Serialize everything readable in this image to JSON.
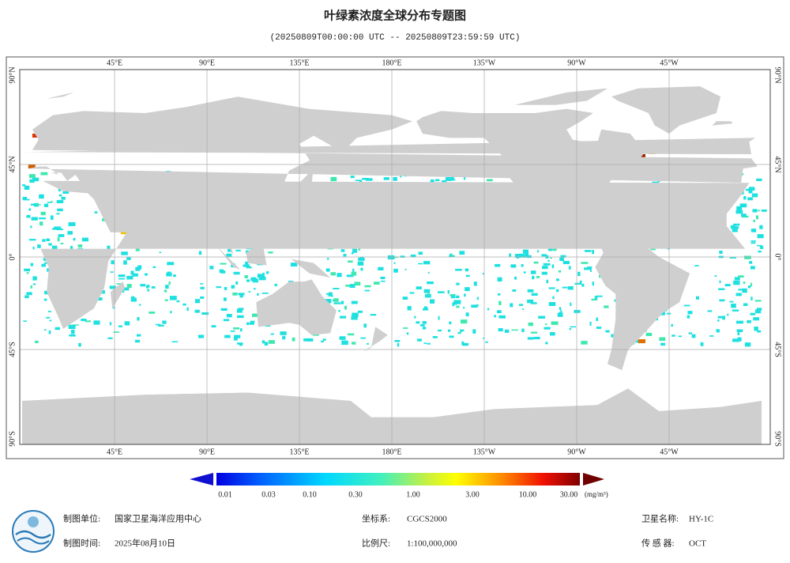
{
  "header": {
    "title": "叶绿素浓度全球分布专题图",
    "subtitle": "(20250809T00:00:00 UTC -- 20250809T23:59:59 UTC)"
  },
  "map": {
    "lon_labels": [
      "45°E",
      "90°E",
      "135°E",
      "180°E",
      "135°W",
      "90°W",
      "45°W"
    ],
    "lat_labels": [
      "90°N",
      "45°N",
      "0°",
      "45°S",
      "90°S"
    ]
  },
  "legend": {
    "tick_labels": [
      "0.01",
      "0.03",
      "0.10",
      "0.30",
      "1.00",
      "3.00",
      "10.00",
      "30.00"
    ],
    "unit": "(mg/m³)"
  },
  "footer": {
    "items": [
      {
        "label": "制图单位:",
        "value": "国家卫星海洋应用中心"
      },
      {
        "label": "坐标系:",
        "value": "CGCS2000"
      },
      {
        "label": "卫星名称:",
        "value": "HY-1C"
      },
      {
        "label": "制图时间:",
        "value": "2025年08月10日"
      },
      {
        "label": "比例尺:",
        "value": "1:100,000,000"
      },
      {
        "label": "传 感 器:",
        "value": "OCT"
      }
    ]
  }
}
